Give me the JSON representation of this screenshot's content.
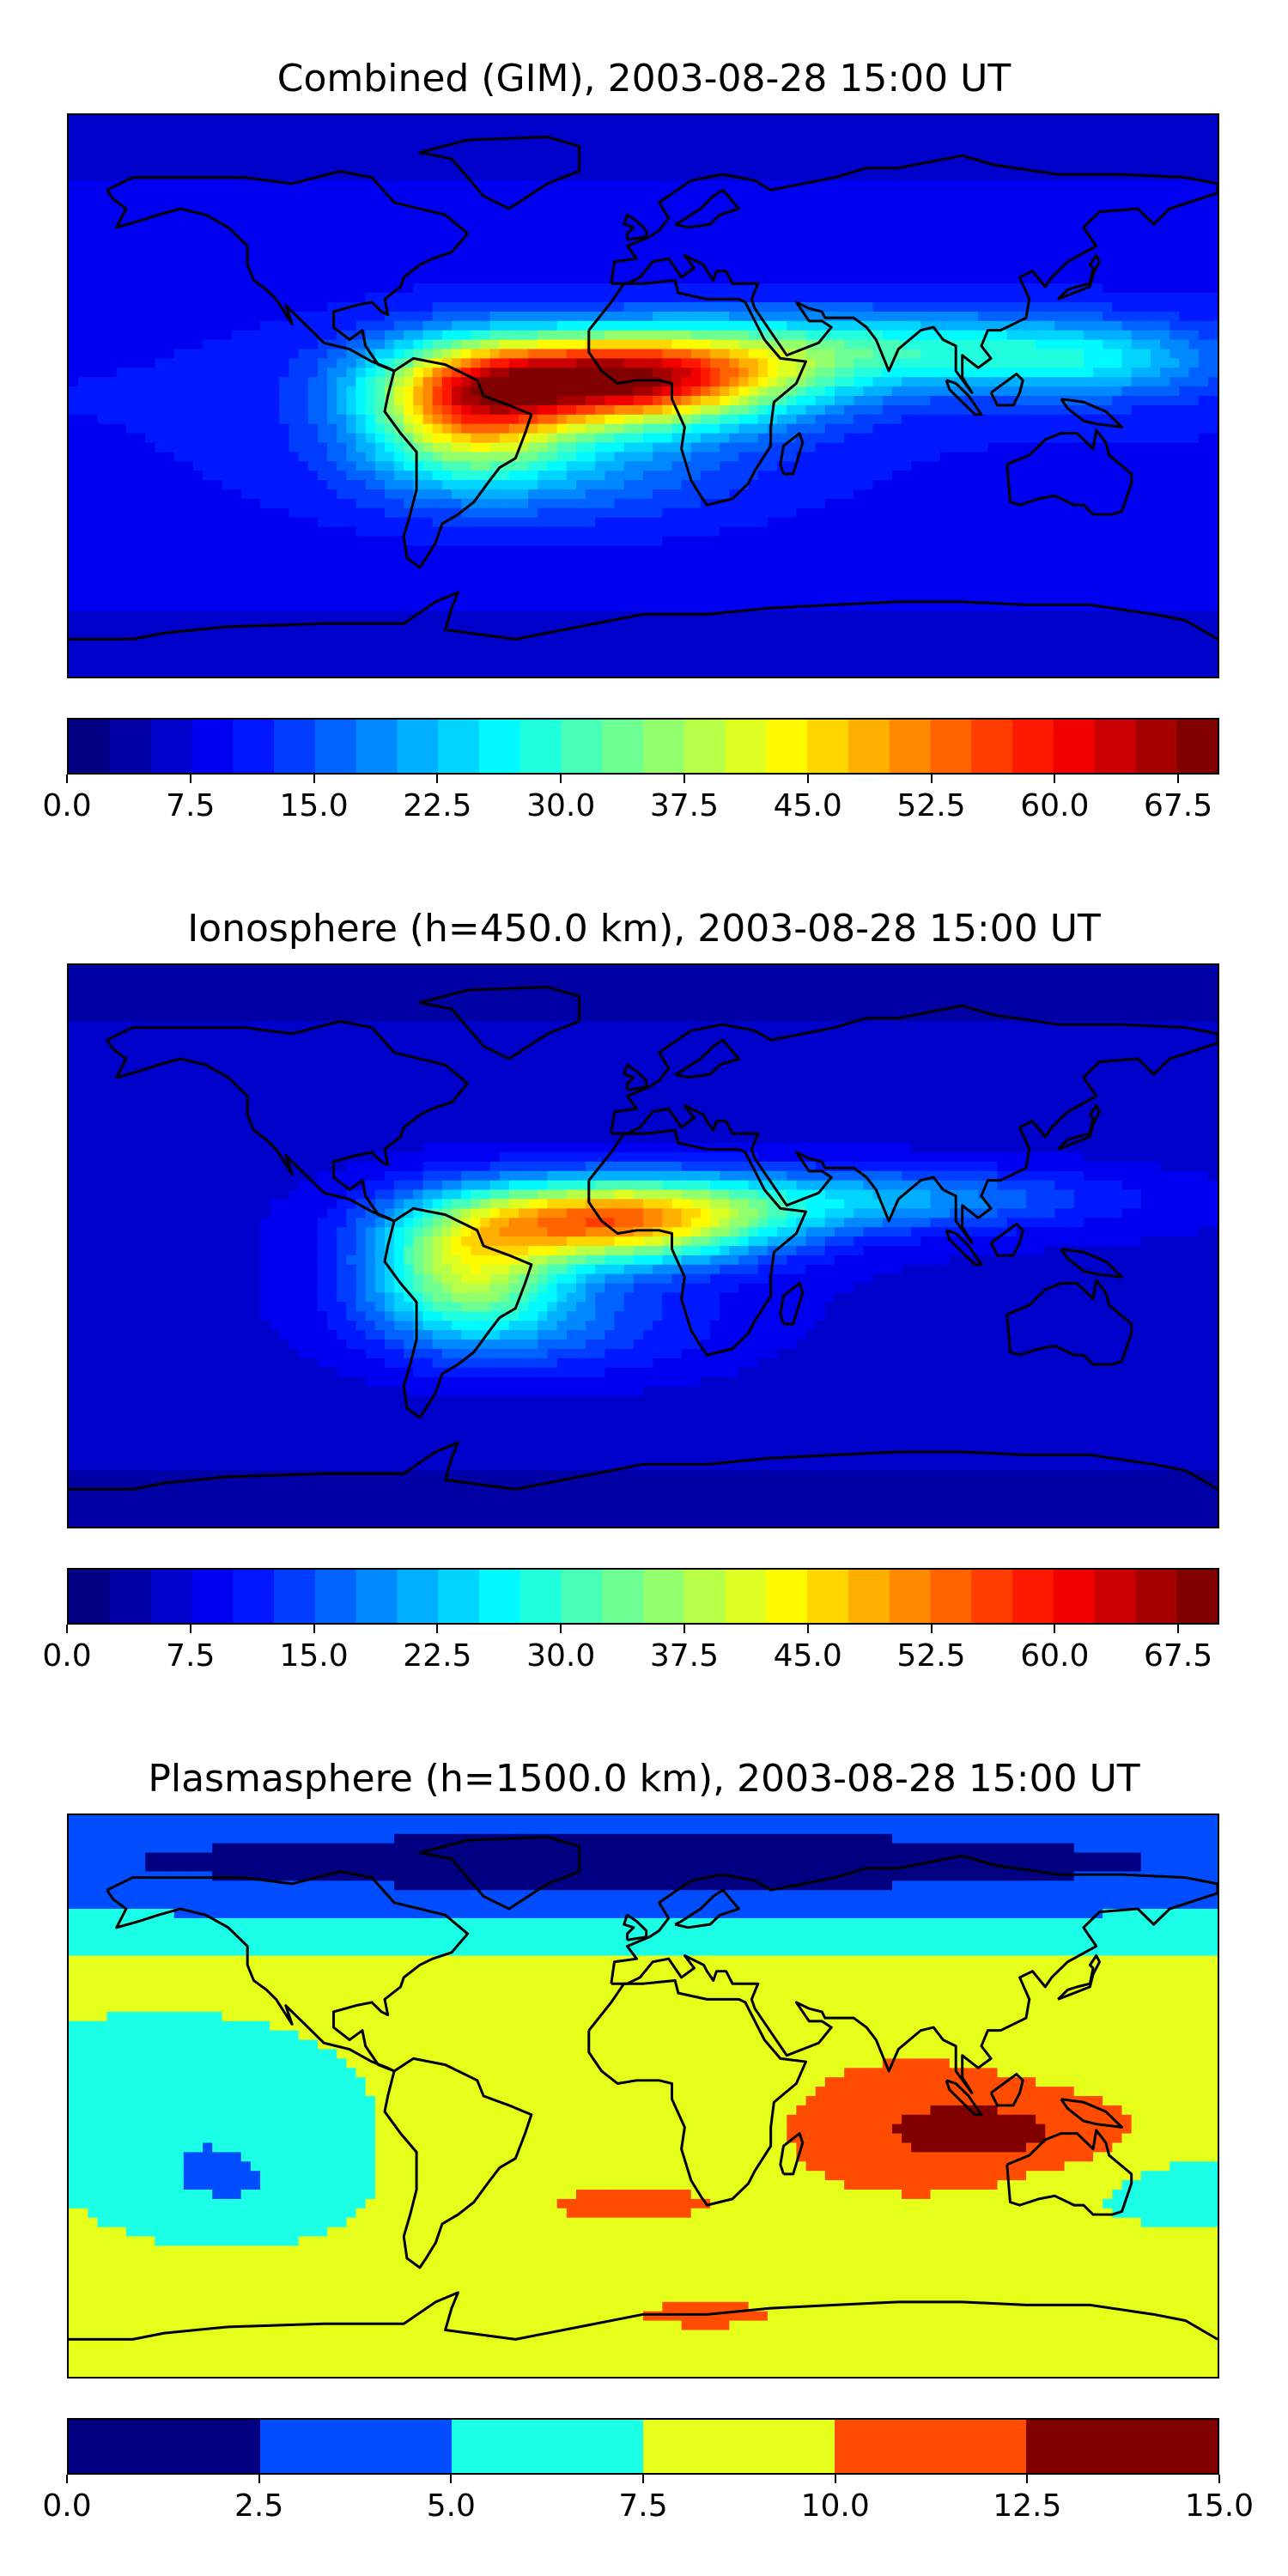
{
  "chart_data": [
    {
      "type": "heatmap",
      "title": "Combined (GIM), 2003-08-28 15:00 UT",
      "colormap": "jet",
      "levels": {
        "min": 0.0,
        "max": 70.0,
        "step": 2.5
      },
      "colorbar_ticks": [
        "0.0",
        "7.5",
        "15.0",
        "22.5",
        "30.0",
        "37.5",
        "45.0",
        "52.5",
        "60.0",
        "67.5"
      ],
      "coastlines": true,
      "max_near": "equatorial Africa (~63)",
      "min_near": "high latitudes (~3)"
    },
    {
      "type": "heatmap",
      "title": "Ionosphere  (h=450.0 km), 2003-08-28 15:00 UT",
      "colormap": "jet",
      "levels": {
        "min": 0.0,
        "max": 70.0,
        "step": 2.5
      },
      "colorbar_ticks": [
        "0.0",
        "7.5",
        "15.0",
        "22.5",
        "30.0",
        "37.5",
        "45.0",
        "52.5",
        "60.0",
        "67.5"
      ],
      "coastlines": true,
      "max_near": "equatorial Africa (~55)",
      "min_near": "high latitudes (~3)"
    },
    {
      "type": "heatmap",
      "title": "Plasmasphere (h=1500.0 km), 2003-08-28 15:00 UT",
      "colormap": "jet",
      "levels": {
        "min": 0.0,
        "max": 15.0,
        "step": 2.5
      },
      "colorbar_ticks": [
        "0.0",
        "2.5",
        "5.0",
        "7.5",
        "10.0",
        "12.5",
        "15.0"
      ],
      "coastlines": true,
      "max_near": "Indian Ocean / Indonesia (12.5–15.0)",
      "min_near": "northern high latitudes (0.0–2.5)"
    }
  ]
}
